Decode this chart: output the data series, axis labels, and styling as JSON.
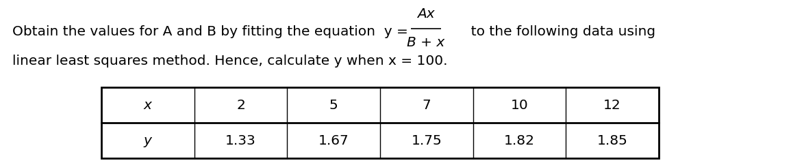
{
  "text_line1_prefix": "Obtain the values for A and B by fitting the equation",
  "text_line1_eq": "y =",
  "text_line1_suffix": "to the following data using",
  "text_line2": "linear least squares method. Hence, calculate y when x = 100.",
  "fraction_numerator": "Ax",
  "fraction_denominator": "B + x",
  "table_x_label": "x",
  "table_y_label": "y",
  "table_x_values": [
    "2",
    "5",
    "7",
    "10",
    "12"
  ],
  "table_y_values": [
    "1.33",
    "1.67",
    "1.75",
    "1.82",
    "1.85"
  ],
  "font_size": 14.5,
  "bg_color": "#ffffff",
  "text_color": "#000000",
  "fig_width": 11.55,
  "fig_height": 2.39,
  "dpi": 100
}
